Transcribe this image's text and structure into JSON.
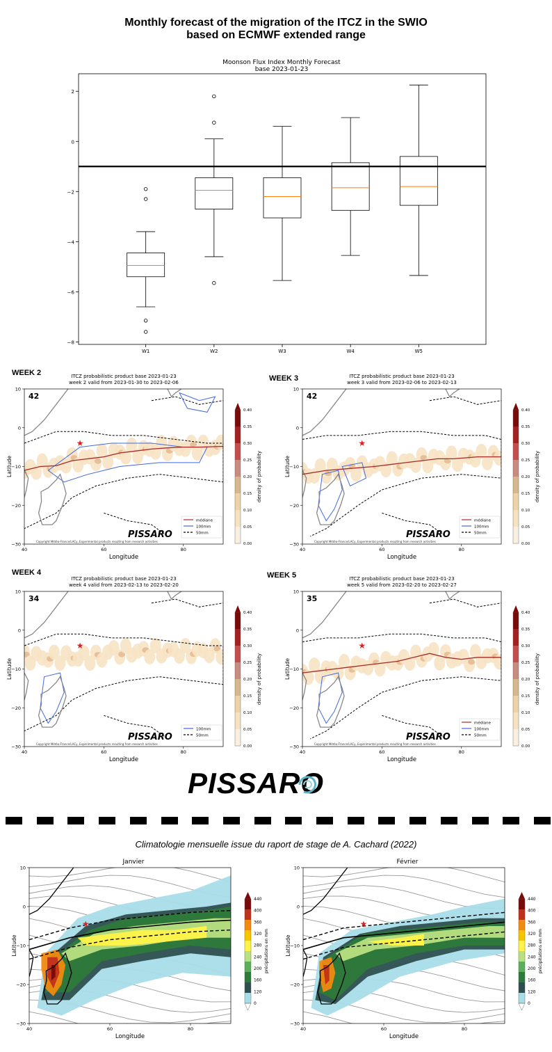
{
  "page": {
    "title_line1": "Monthly forecast of the migration of the ITCZ in the SWIO",
    "title_line2": "based on ECMWF extended range",
    "logo_text": "PISSARO",
    "climatology_title": "Climatologie mensuelle issue du raport de stage de A. Cachard (2022)"
  },
  "chart_data": [
    {
      "type": "box",
      "title": "Moonson Flux Index Monthly Forecast",
      "subtitle": "base 2023-01-23",
      "categories": [
        "W1",
        "W2",
        "W3",
        "W4",
        "W5"
      ],
      "ylim": [
        -8.1,
        2.7
      ],
      "yticks": [
        -8,
        -6,
        -4,
        -2,
        0,
        2
      ],
      "reference_line": -1.0,
      "boxes": [
        {
          "label": "W1",
          "whislo": -6.6,
          "q1": -5.4,
          "med": -4.95,
          "q3": -4.45,
          "whishi": -3.6,
          "fliers": [
            -1.9,
            -2.3,
            -7.15,
            -7.6
          ]
        },
        {
          "label": "W2",
          "whislo": -4.6,
          "q1": -2.7,
          "med": -1.95,
          "q3": -1.45,
          "whishi": 0.1,
          "fliers": [
            1.8,
            0.75,
            -5.65
          ]
        },
        {
          "label": "W3",
          "whislo": -5.55,
          "q1": -3.05,
          "med": -2.2,
          "q3": -1.45,
          "whishi": 0.6,
          "fliers": []
        },
        {
          "label": "W4",
          "whislo": -4.55,
          "q1": -2.75,
          "med": -1.85,
          "q3": -0.85,
          "whishi": 0.95,
          "fliers": []
        },
        {
          "label": "W5",
          "whislo": -5.35,
          "q1": -2.55,
          "med": -1.8,
          "q3": -0.6,
          "whishi": 2.25,
          "fliers": []
        }
      ],
      "grid": false,
      "colors": {
        "box": "#000000",
        "median": "#ff7f0e",
        "reference": "#000000"
      }
    },
    {
      "type": "heatmap",
      "week_label": "WEEK 2",
      "title": "ITCZ probabilistic product base 2023-01-23",
      "subtitle": "week 2 valid from 2023-01-30 to 2023-02-06",
      "count": "42",
      "xlabel": "Longitude",
      "ylabel": "Latitude",
      "xlim": [
        40,
        90
      ],
      "ylim": [
        -30,
        10
      ],
      "xticks": [
        "40",
        "60",
        "80"
      ],
      "yticks": [
        "10",
        "0",
        "-10",
        "-20",
        "-30"
      ],
      "cbar_label": "density of probability",
      "cbar_ticks": [
        "0.40",
        "0.35",
        "0.30",
        "0.25",
        "0.20",
        "0.15",
        "0.10",
        "0.05",
        "0.00"
      ],
      "legend": [
        "médiane",
        "100mm",
        "50mm"
      ],
      "median": [
        [
          40,
          -11
        ],
        [
          44,
          -10
        ],
        [
          48,
          -9.8
        ],
        [
          52,
          -8.5
        ],
        [
          56,
          -8
        ],
        [
          60,
          -7.5
        ],
        [
          64,
          -6.5
        ],
        [
          68,
          -6
        ],
        [
          72,
          -5.5
        ],
        [
          76,
          -5.2
        ],
        [
          80,
          -5
        ],
        [
          84,
          -5
        ],
        [
          90,
          -4.8
        ]
      ],
      "marker": [
        54,
        -4
      ],
      "copyright": "Copyright Météo-France/LACy, Experimental products resulting from research activities",
      "logo": "PISSARO"
    },
    {
      "type": "heatmap",
      "week_label": "WEEK 3",
      "title": "ITCZ probabilistic product base 2023-01-23",
      "subtitle": "week 3 valid from 2023-02-06 to 2023-02-13",
      "count": "42",
      "xlabel": "Longitude",
      "ylabel": "Latitude",
      "xlim": [
        40,
        90
      ],
      "ylim": [
        -30,
        10
      ],
      "xticks": [
        "40",
        "60",
        "80"
      ],
      "yticks": [
        "10",
        "0",
        "-10",
        "-20",
        "-30"
      ],
      "cbar_label": "density of probability",
      "cbar_ticks": [
        "0.40",
        "0.35",
        "0.30",
        "0.25",
        "0.20",
        "0.15",
        "0.10",
        "0.05",
        "0.00"
      ],
      "legend": [
        "médiane",
        "100mm",
        "50mm"
      ],
      "median": [
        [
          40,
          -12
        ],
        [
          46,
          -11
        ],
        [
          52,
          -10.5
        ],
        [
          58,
          -10
        ],
        [
          62,
          -9.5
        ],
        [
          66,
          -9
        ],
        [
          70,
          -8.5
        ],
        [
          74,
          -8
        ],
        [
          78,
          -8
        ],
        [
          84,
          -7.5
        ],
        [
          90,
          -7.5
        ]
      ],
      "marker": [
        55,
        -4
      ],
      "copyright": "Copyright Météo-France/LACy, Experimental products resulting from research activities",
      "logo": "PISSARO"
    },
    {
      "type": "heatmap",
      "week_label": "WEEK 4",
      "title": "ITCZ probabilistic product base 2023-01-23",
      "subtitle": "week 4 valid from 2023-02-13 to 2023-02-20",
      "count": "34",
      "xlabel": "Longitude",
      "ylabel": "Latitude",
      "xlim": [
        40,
        90
      ],
      "ylim": [
        -30,
        10
      ],
      "xticks": [
        "40",
        "60",
        "80"
      ],
      "yticks": [
        "10",
        "0",
        "-10",
        "-20",
        "-30"
      ],
      "cbar_label": "density of probability",
      "cbar_ticks": [
        "0.40",
        "0.35",
        "0.30",
        "0.25",
        "0.20",
        "0.15",
        "0.10",
        "0.05",
        "0.00"
      ],
      "legend": [
        "100mm",
        "50mm"
      ],
      "median": [],
      "marker": [
        54,
        -4
      ],
      "copyright": "Copyright Météo-France/LACy, Experimental products resulting from research activities",
      "logo": "PISSARO"
    },
    {
      "type": "heatmap",
      "week_label": "WEEK 5",
      "title": "ITCZ probabilistic product base 2023-01-23",
      "subtitle": "week 5 valid from 2023-02-20 to 2023-02-27",
      "count": "35",
      "xlabel": "Longitude",
      "ylabel": "Latitude",
      "xlim": [
        40,
        90
      ],
      "ylim": [
        -30,
        10
      ],
      "xticks": [
        "40",
        "60",
        "80"
      ],
      "yticks": [
        "10",
        "0",
        "-10",
        "-20",
        "-30"
      ],
      "cbar_label": "density of probability",
      "cbar_ticks": [
        "0.40",
        "0.35",
        "0.30",
        "0.25",
        "0.20",
        "0.15",
        "0.10",
        "0.05",
        "0.00"
      ],
      "legend": [
        "médiane",
        "100mm",
        "50mm"
      ],
      "median": [
        [
          40,
          -11
        ],
        [
          44,
          -10.5
        ],
        [
          48,
          -10
        ],
        [
          52,
          -9.5
        ],
        [
          56,
          -9
        ],
        [
          60,
          -8.5
        ],
        [
          64,
          -8
        ],
        [
          68,
          -7
        ],
        [
          72,
          -6
        ],
        [
          76,
          -7
        ],
        [
          80,
          -7.5
        ],
        [
          84,
          -7
        ],
        [
          90,
          -7
        ]
      ],
      "marker": [
        55,
        -4
      ],
      "copyright": "Copyright Météo-France/LACy, Experimental products resulting from research activities",
      "logo": "PISSARO"
    },
    {
      "type": "heatmap",
      "title": "Janvier",
      "xlabel": "Longitude",
      "ylabel": "Latitude",
      "xlim": [
        40,
        90
      ],
      "ylim": [
        -30,
        10
      ],
      "xticks": [
        "40",
        "60",
        "80"
      ],
      "yticks": [
        "10",
        "0",
        "-10",
        "-20",
        "-30"
      ],
      "cbar_label": "précipitations en mm",
      "cbar_ticks": [
        "440",
        "400",
        "360",
        "320",
        "280",
        "240",
        "200",
        "160",
        "120",
        "0"
      ],
      "marker": [
        54,
        -4.5
      ]
    },
    {
      "type": "heatmap",
      "title": "Février",
      "xlabel": "Longitude",
      "ylabel": "Latitude",
      "xlim": [
        40,
        90
      ],
      "ylim": [
        -30,
        10
      ],
      "xticks": [
        "40",
        "60",
        "80"
      ],
      "yticks": [
        "10",
        "0",
        "-10",
        "-20",
        "-30"
      ],
      "cbar_label": "précipitations en mm",
      "cbar_ticks": [
        "440",
        "400",
        "360",
        "320",
        "280",
        "240",
        "200",
        "160",
        "120",
        "0"
      ],
      "marker": [
        55,
        -4.5
      ]
    }
  ]
}
